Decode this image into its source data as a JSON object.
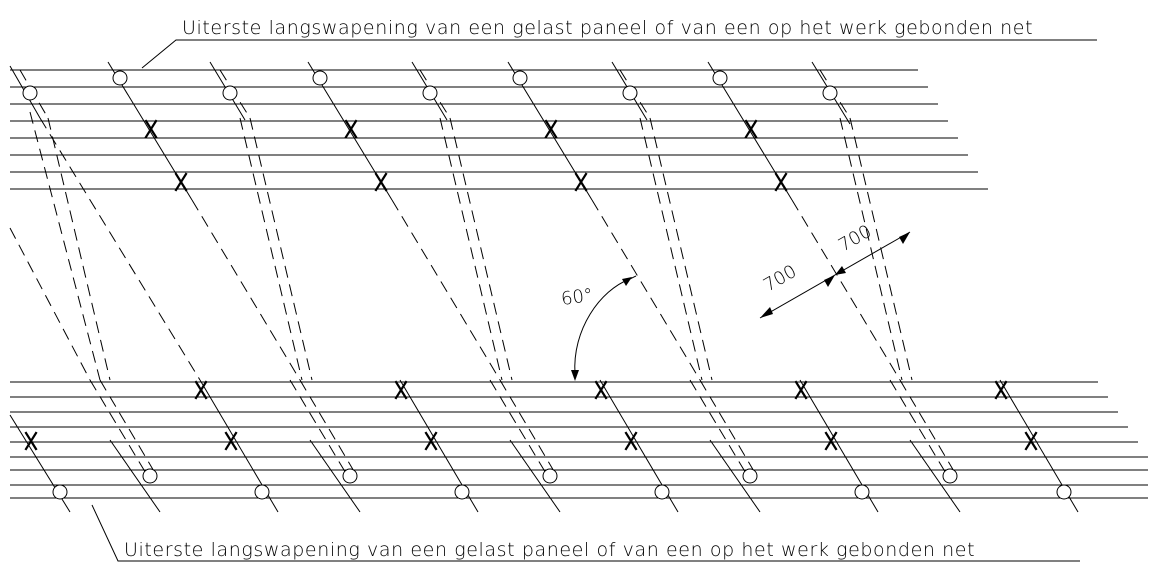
{
  "labels": {
    "top": "Uiterste langswapening van een gelast paneel of van een op het werk gebonden net",
    "bottom": "Uiterste langswapening van een gelast paneel of van een op het werk gebonden net"
  },
  "dimensions": {
    "angle": "60°",
    "spacing_1": "700",
    "spacing_2": "700"
  },
  "colors": {
    "ink": "#000000",
    "paper": "#ffffff"
  }
}
